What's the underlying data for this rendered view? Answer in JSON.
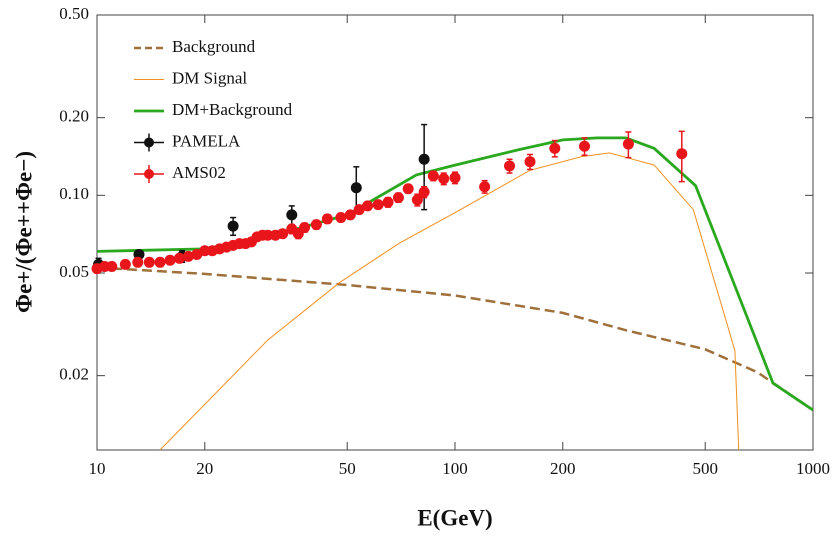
{
  "chart_data": {
    "type": "line",
    "log_x": true,
    "log_y": true,
    "legend": "upper left",
    "xlabel": "E(GeV)",
    "ylabel": "Φe+/(Φe++Φe−)",
    "xlim": [
      10,
      1000
    ],
    "xticks": [
      10,
      20,
      50,
      100,
      200,
      500,
      1000
    ],
    "ylim": [
      0.0103,
      0.5
    ],
    "yticks": [
      0.02,
      0.05,
      {
        "value": 0.1,
        "label": "0.10"
      },
      {
        "value": 0.2,
        "label": "0.20"
      },
      {
        "value": 0.5,
        "label": "0.50"
      }
    ],
    "series": [
      {
        "name": "Background",
        "color": "#a0703a",
        "style": "dashed",
        "line_width": 2.5,
        "x": [
          10,
          20,
          50,
          100,
          200,
          300,
          500,
          700,
          1000
        ],
        "values": [
          0.0525,
          0.0496,
          0.0449,
          0.0409,
          0.035,
          0.03,
          0.0253,
          0.0206,
          0.0147
        ]
      },
      {
        "name": "DM Signal",
        "color": "#f0901e",
        "style": "solid",
        "line_width": 1,
        "x": [
          15,
          30,
          47.7,
          70,
          100,
          162,
          225,
          270,
          360,
          463,
          605,
          620
        ],
        "values": [
          0.0103,
          0.0275,
          0.046,
          0.0653,
          0.0856,
          0.125,
          0.141,
          0.146,
          0.131,
          0.088,
          0.025,
          0.0103
        ]
      },
      {
        "name": "DM+Background",
        "color": "#2aa81e",
        "style": "solid",
        "line_width": 2.8,
        "x": [
          10,
          20,
          30,
          50,
          78,
          100,
          150,
          200,
          250,
          300,
          360,
          470,
          773,
          1000
        ],
        "values": [
          0.0606,
          0.062,
          0.069,
          0.084,
          0.12,
          0.131,
          0.15,
          0.164,
          0.167,
          0.167,
          0.152,
          0.109,
          0.0187,
          0.0147
        ]
      },
      {
        "name": "PAMELA",
        "color": "#111111",
        "style": "points",
        "x": [
          10.1,
          13.1,
          17.3,
          24,
          35,
          53,
          82
        ],
        "values": [
          0.054,
          0.059,
          0.058,
          0.076,
          0.084,
          0.107,
          0.138
        ],
        "errors": [
          0.003,
          0.002,
          0.003,
          0.006,
          0.007,
          0.022,
          0.05
        ]
      },
      {
        "name": "AMS02",
        "color": "#e8151b",
        "style": "points",
        "x": [
          10,
          10.5,
          11,
          12,
          13,
          14,
          15,
          16,
          17,
          18,
          19,
          20,
          21,
          22,
          23,
          24,
          25,
          26,
          27,
          28,
          29,
          30,
          31.5,
          33,
          35,
          36.5,
          38,
          41,
          44,
          48,
          51,
          54,
          57,
          61,
          65,
          69.5,
          74,
          78.5,
          82,
          87,
          93,
          100,
          121,
          142,
          162,
          190,
          230,
          305,
          430
        ],
        "values": [
          0.052,
          0.053,
          0.053,
          0.054,
          0.055,
          0.055,
          0.055,
          0.056,
          0.057,
          0.058,
          0.059,
          0.061,
          0.061,
          0.062,
          0.063,
          0.064,
          0.065,
          0.065,
          0.066,
          0.069,
          0.07,
          0.07,
          0.07,
          0.071,
          0.074,
          0.071,
          0.075,
          0.077,
          0.081,
          0.082,
          0.084,
          0.088,
          0.091,
          0.092,
          0.094,
          0.098,
          0.106,
          0.096,
          0.103,
          0.119,
          0.116,
          0.117,
          0.108,
          0.13,
          0.135,
          0.152,
          0.155,
          0.158,
          0.145
        ],
        "errors": [
          0.002,
          0.002,
          0.002,
          0.002,
          0.002,
          0.002,
          0.002,
          0.002,
          0.002,
          0.002,
          0.002,
          0.002,
          0.002,
          0.002,
          0.002,
          0.002,
          0.002,
          0.002,
          0.002,
          0.002,
          0.002,
          0.002,
          0.002,
          0.002,
          0.003,
          0.003,
          0.003,
          0.003,
          0.003,
          0.003,
          0.003,
          0.003,
          0.003,
          0.003,
          0.004,
          0.004,
          0.004,
          0.005,
          0.005,
          0.005,
          0.006,
          0.006,
          0.006,
          0.008,
          0.009,
          0.011,
          0.012,
          0.018,
          0.032
        ]
      }
    ]
  }
}
